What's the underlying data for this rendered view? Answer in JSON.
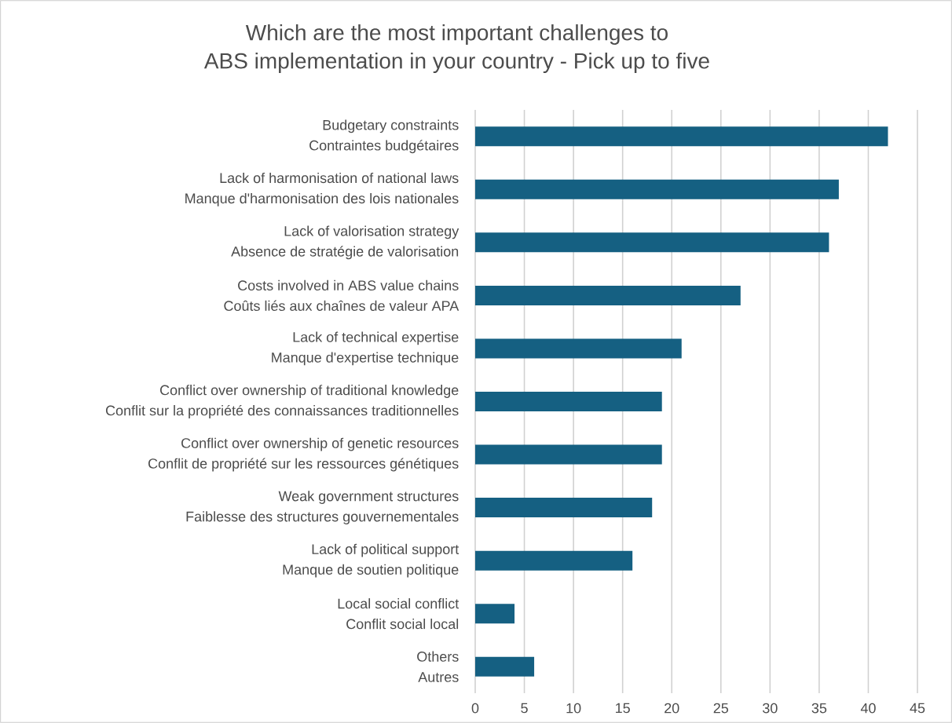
{
  "chart_data": {
    "type": "bar",
    "orientation": "horizontal",
    "title": "Which are the most important challenges to\nABS implementation in your country - Pick up to five",
    "categories": [
      "Budgetary constraints\nContraintes budgétaires",
      "Lack of harmonisation of national laws\nManque d'harmonisation des lois nationales",
      "Lack of valorisation strategy\nAbsence de stratégie de valorisation",
      "Costs involved in ABS value chains\nCoûts liés aux chaînes de valeur APA",
      "Lack of technical expertise\nManque d'expertise technique",
      "Conflict over ownership of traditional knowledge\nConflit sur la propriété des connaissances traditionnelles",
      "Conflict over ownership of genetic resources\nConflit de propriété sur les ressources génétiques",
      "Weak government structures\nFaiblesse des structures gouvernementales",
      "Lack of political support\nManque de soutien politique",
      "Local social conflict\nConflit social local",
      "Others\nAutres"
    ],
    "values": [
      42,
      37,
      36,
      27,
      21,
      19,
      19,
      18,
      16,
      4,
      6
    ],
    "color": "#156082",
    "xlim": [
      0,
      45
    ],
    "xticks": [
      0,
      5,
      10,
      15,
      20,
      25,
      30,
      35,
      40,
      45
    ],
    "grid": "x"
  }
}
